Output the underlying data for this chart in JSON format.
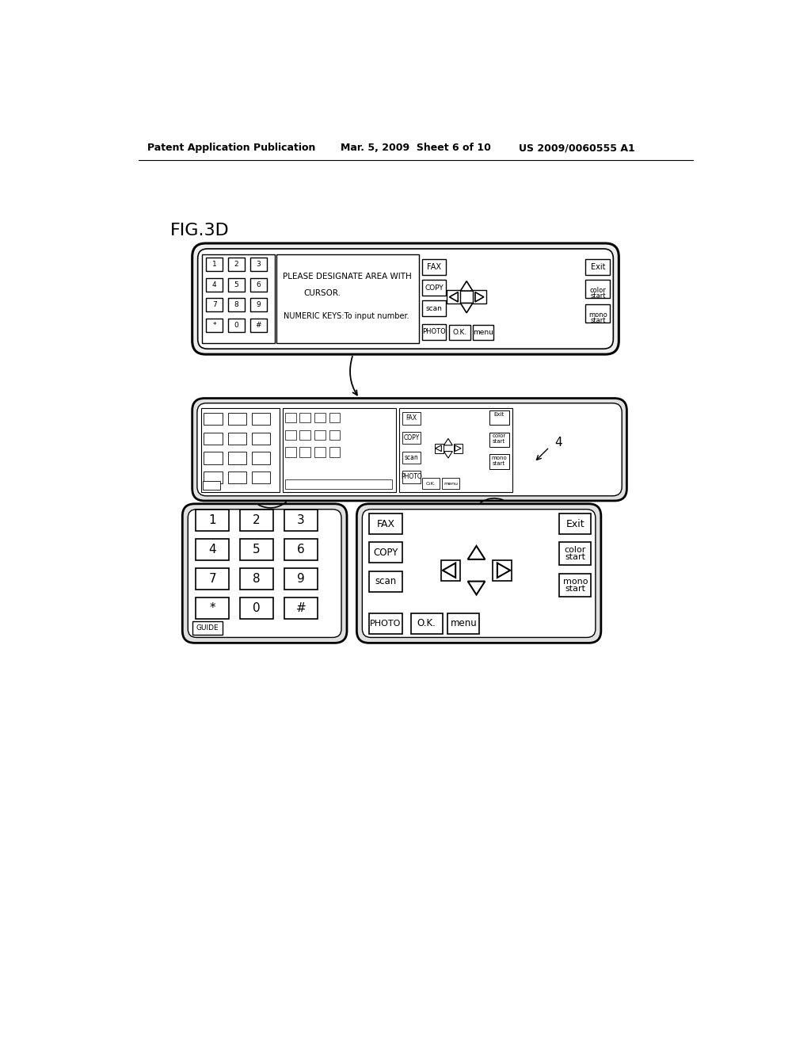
{
  "bg_color": "#ffffff",
  "header_left": "Patent Application Publication",
  "header_mid": "Mar. 5, 2009  Sheet 6 of 10",
  "header_right": "US 2009/0060555 A1",
  "fig_label": "FIG.3D",
  "ref_number": "4"
}
